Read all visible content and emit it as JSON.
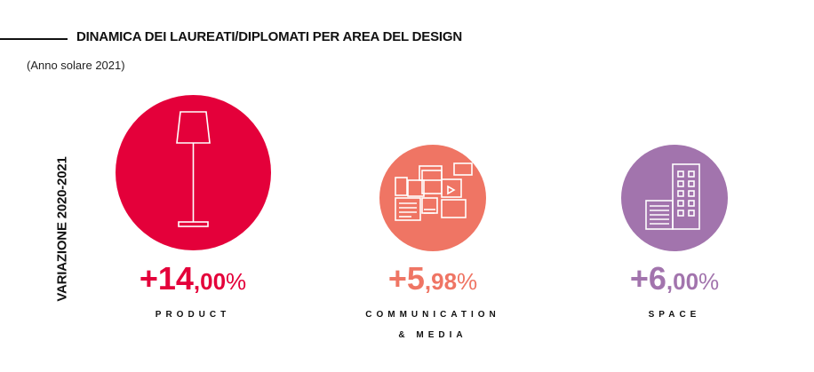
{
  "header": {
    "title": "DINAMICA DEI LAUREATI/DIPLOMATI PER AREA DEL DESIGN",
    "subtitle": "(Anno solare 2021)",
    "vertical_label": "VARIAZIONE 2020-2021"
  },
  "colors": {
    "product": "#e4003a",
    "communication": "#ef7564",
    "space": "#a274ad"
  },
  "areas": [
    {
      "icon": "floor-lamp-icon",
      "value_int": "+14",
      "value_dec": ",00",
      "value_pct": "%",
      "label_line1": "PRODUCT",
      "label_line2": ""
    },
    {
      "icon": "media-collage-icon",
      "value_int": "+5",
      "value_dec": ",98",
      "value_pct": "%",
      "label_line1": "COMMUNICATION",
      "label_line2": "& MEDIA"
    },
    {
      "icon": "buildings-icon",
      "value_int": "+6",
      "value_dec": ",00",
      "value_pct": "%",
      "label_line1": "SPACE",
      "label_line2": ""
    }
  ]
}
